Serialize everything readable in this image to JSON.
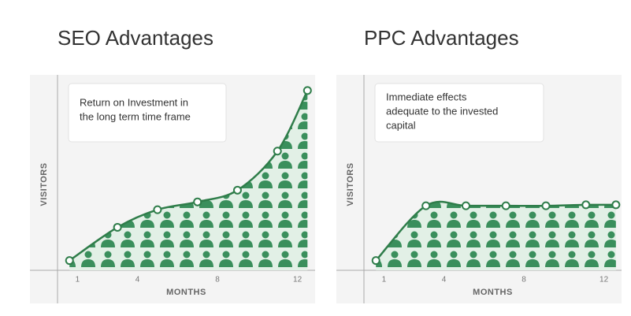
{
  "chart_data": [
    {
      "type": "area",
      "title": "SEO Advantages",
      "annotation": [
        "Return on Investment in",
        "the long term time frame"
      ],
      "xlabel": "MONTHS",
      "ylabel": "VISITORS",
      "x": [
        0.6,
        3,
        5,
        7,
        9,
        11,
        12.5
      ],
      "values": [
        0.5,
        2.2,
        3.1,
        3.5,
        4.1,
        6.1,
        9.2
      ],
      "xlim": [
        0,
        13
      ],
      "ylim": [
        0,
        10
      ],
      "xticks": [
        1,
        4,
        8,
        12
      ],
      "color": "#2f7d4a"
    },
    {
      "type": "area",
      "title": "PPC Advantages",
      "annotation": [
        "Immediate effects",
        "adequate to the invested",
        "capital"
      ],
      "xlabel": "MONTHS",
      "ylabel": "VISITORS",
      "x": [
        0.6,
        3.1,
        5.1,
        7.1,
        9.1,
        11.1,
        12.6
      ],
      "values": [
        0.5,
        3.3,
        3.3,
        3.3,
        3.3,
        3.35,
        3.35
      ],
      "xlim": [
        0,
        13
      ],
      "ylim": [
        0,
        10
      ],
      "xticks": [
        1,
        4,
        8,
        12
      ],
      "color": "#2f7d4a"
    }
  ]
}
